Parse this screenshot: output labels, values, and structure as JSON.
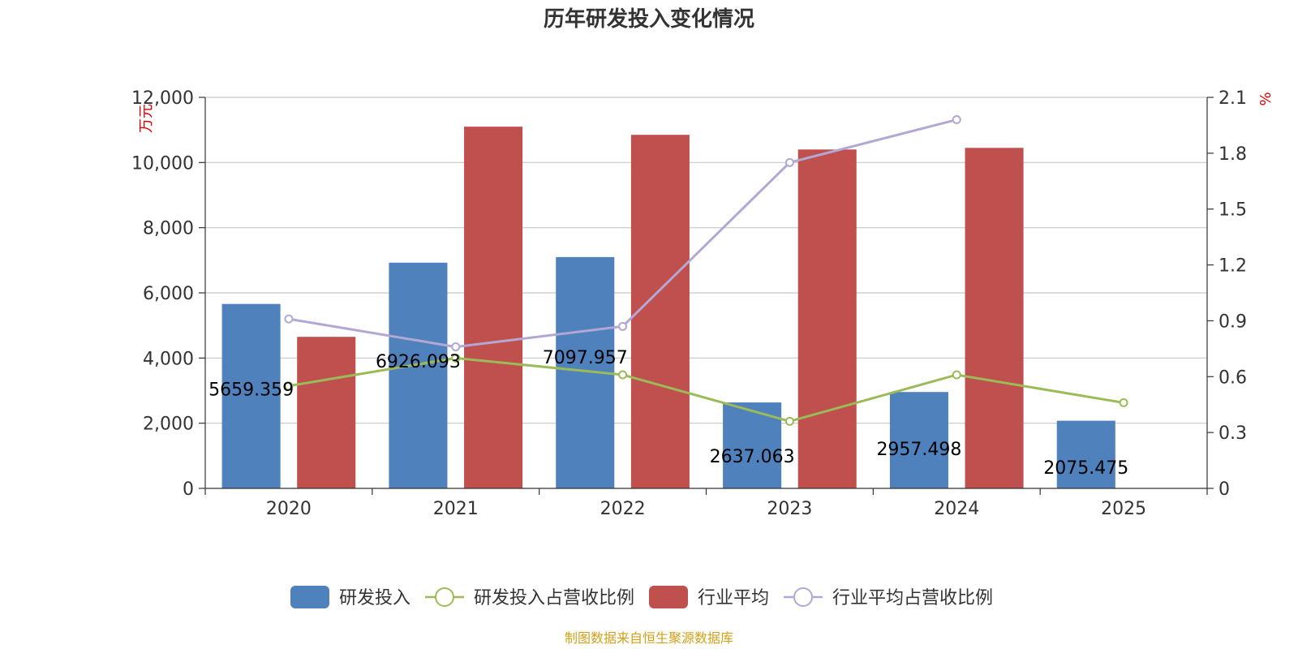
{
  "chart_data": {
    "type": "bar",
    "title": "历年研发投入变化情况",
    "categories": [
      "2020",
      "2021",
      "2022",
      "2023",
      "2024",
      "2025"
    ],
    "y_left": {
      "label": "万元",
      "ylim": [
        0,
        12000
      ],
      "ticks": [
        "0",
        "2,000",
        "4,000",
        "6,000",
        "8,000",
        "10,000",
        "12,000"
      ],
      "tick_values": [
        0,
        2000,
        4000,
        6000,
        8000,
        10000,
        12000
      ]
    },
    "y_right": {
      "label": "%",
      "ylim": [
        0,
        2.1
      ],
      "ticks": [
        "0",
        "0.3",
        "0.6",
        "0.9",
        "1.2",
        "1.5",
        "1.8",
        "2.1"
      ],
      "tick_values": [
        0,
        0.3,
        0.6,
        0.9,
        1.2,
        1.5,
        1.8,
        2.1
      ]
    },
    "series": [
      {
        "name": "研发投入",
        "type": "bar",
        "axis": "left",
        "color": "#4f81bd",
        "values": [
          5659.359,
          6926.093,
          7097.957,
          2637.063,
          2957.498,
          2075.475
        ],
        "labels": [
          "5659.359",
          "6926.093",
          "7097.957",
          "2637.063",
          "2957.498",
          "2075.475"
        ]
      },
      {
        "name": "研发投入占营收比例",
        "type": "line",
        "axis": "right",
        "color": "#9bbb59",
        "values": [
          0.55,
          0.7,
          0.61,
          0.36,
          0.61,
          0.46
        ]
      },
      {
        "name": "行业平均",
        "type": "bar",
        "axis": "left",
        "color": "#c0504d",
        "values": [
          4650,
          11100,
          10850,
          10400,
          10450,
          null
        ]
      },
      {
        "name": "行业平均占营收比例",
        "type": "line",
        "axis": "right",
        "color": "#b3a7d3",
        "values": [
          0.91,
          0.76,
          0.87,
          1.75,
          1.98,
          null
        ]
      }
    ],
    "legend_position": "bottom-center",
    "source": "制图数据来自恒生聚源数据库"
  }
}
